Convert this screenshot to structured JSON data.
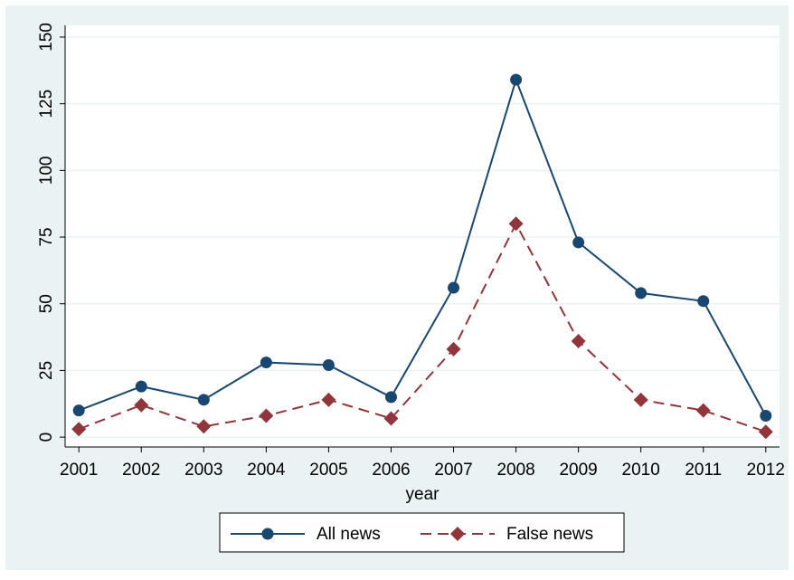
{
  "chart_data": {
    "type": "line",
    "x_label": "year",
    "x": [
      2001,
      2002,
      2003,
      2004,
      2005,
      2006,
      2007,
      2008,
      2009,
      2010,
      2011,
      2012
    ],
    "series": [
      {
        "name": "All news",
        "color": "#1a476f",
        "marker": "circle",
        "dash": false,
        "values": [
          10,
          19,
          14,
          28,
          27,
          15,
          56,
          134,
          73,
          54,
          51,
          8
        ]
      },
      {
        "name": "False news",
        "color": "#90353b",
        "marker": "diamond",
        "dash": true,
        "values": [
          3,
          12,
          4,
          8,
          14,
          7,
          33,
          80,
          36,
          14,
          10,
          2
        ]
      }
    ],
    "xlim": [
      2000.78,
      2012.22
    ],
    "xticks": [
      2001,
      2002,
      2003,
      2004,
      2005,
      2006,
      2007,
      2008,
      2009,
      2010,
      2011,
      2012
    ],
    "ylim": [
      -3.7,
      154.4
    ],
    "yticks": [
      0,
      25,
      50,
      75,
      100,
      125,
      150
    ],
    "grid": true,
    "legend": "bottom"
  }
}
